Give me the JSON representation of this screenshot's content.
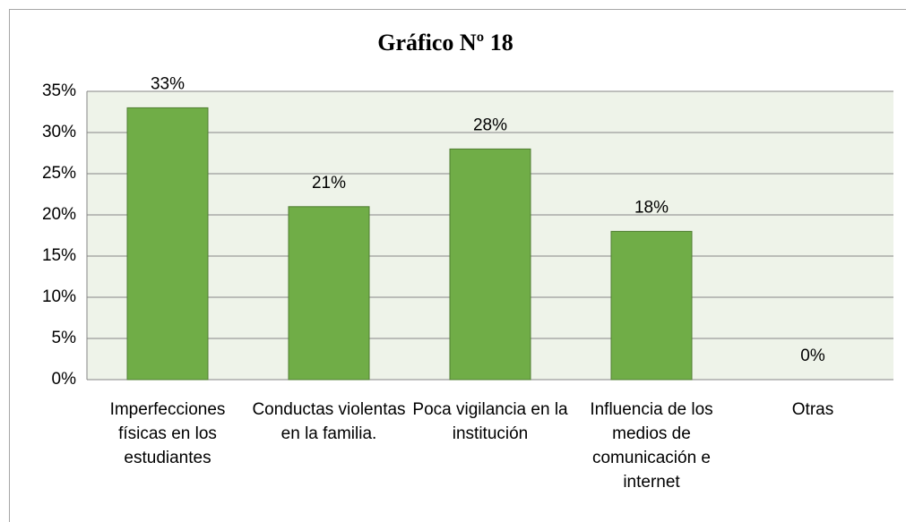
{
  "chart_data": {
    "type": "bar",
    "title": "Gráfico Nº 18",
    "categories": [
      "Imperfecciones físicas en los estudiantes",
      "Conductas violentas en la familia.",
      "Poca vigilancia en la institución",
      "Influencia de los medios de comunicación e internet",
      "Otras"
    ],
    "values": [
      33,
      21,
      28,
      18,
      0
    ],
    "value_labels": [
      "33%",
      "21%",
      "28%",
      "18%",
      "0%"
    ],
    "color": "#70ad47",
    "ylim": [
      0,
      35
    ],
    "yticks": [
      {
        "value": 0,
        "label": "0%"
      },
      {
        "value": 5,
        "label": "5%"
      },
      {
        "value": 10,
        "label": "10%"
      },
      {
        "value": 15,
        "label": "15%"
      },
      {
        "value": 20,
        "label": "20%"
      },
      {
        "value": 25,
        "label": "25%"
      },
      {
        "value": 30,
        "label": "30%"
      },
      {
        "value": 35,
        "label": "35%"
      }
    ],
    "grid": true
  }
}
